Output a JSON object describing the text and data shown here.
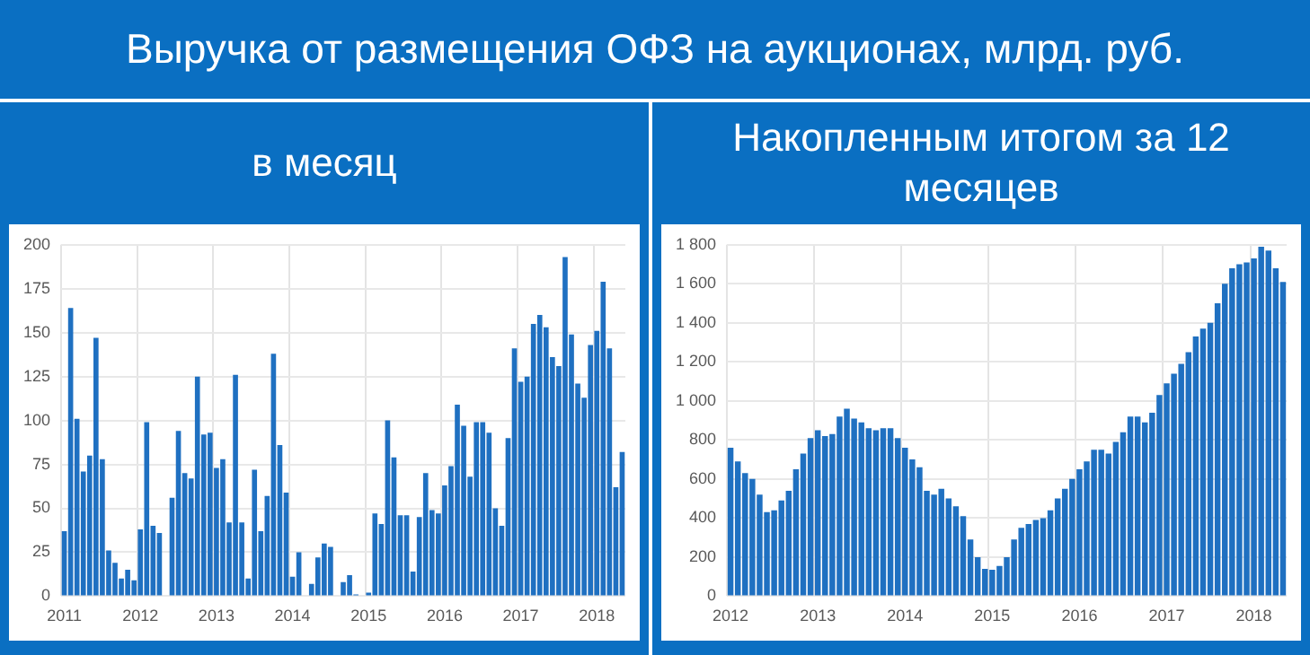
{
  "chart_data": [
    {
      "type": "bar",
      "title": "Выручка от размещения ОФЗ на аукционах, млрд. руб.",
      "subtitle": "в месяц",
      "categories": [
        "2011",
        null,
        null,
        null,
        null,
        null,
        null,
        null,
        null,
        null,
        null,
        null,
        "2012",
        null,
        null,
        null,
        null,
        null,
        null,
        null,
        null,
        null,
        null,
        null,
        "2013",
        null,
        null,
        null,
        null,
        null,
        null,
        null,
        null,
        null,
        null,
        null,
        "2014",
        null,
        null,
        null,
        null,
        null,
        null,
        null,
        null,
        null,
        null,
        null,
        "2015",
        null,
        null,
        null,
        null,
        null,
        null,
        null,
        null,
        null,
        null,
        null,
        "2016",
        null,
        null,
        null,
        null,
        null,
        null,
        null,
        null,
        null,
        null,
        null,
        "2017",
        null,
        null,
        null,
        null,
        null,
        null,
        null,
        null,
        null,
        null,
        null,
        "2018",
        null,
        null,
        null,
        null
      ],
      "values": [
        37,
        164,
        101,
        71,
        80,
        147,
        78,
        26,
        19,
        10,
        15,
        9,
        38,
        99,
        40,
        36,
        0,
        56,
        94,
        70,
        67,
        125,
        92,
        93,
        73,
        78,
        42,
        126,
        42,
        10,
        72,
        37,
        57,
        138,
        86,
        59,
        11,
        25,
        0,
        7,
        22,
        30,
        28,
        0,
        8,
        12,
        1,
        0,
        2,
        47,
        41,
        100,
        79,
        46,
        46,
        14,
        45,
        70,
        49,
        47,
        63,
        74,
        109,
        97,
        68,
        99,
        99,
        93,
        50,
        40,
        90,
        141,
        122,
        125,
        155,
        160,
        153,
        136,
        131,
        193,
        149,
        121,
        113,
        143,
        151,
        179,
        141,
        62,
        82
      ],
      "color": "#1f70c1",
      "ylim": [
        0,
        200
      ],
      "yticks": [
        0,
        25,
        50,
        75,
        100,
        125,
        150,
        175,
        200
      ],
      "grid": true
    },
    {
      "type": "bar",
      "subtitle": "Накопленным итогом за 12 месяцев",
      "categories": [
        "2012",
        null,
        null,
        null,
        null,
        null,
        null,
        null,
        null,
        null,
        null,
        null,
        "2013",
        null,
        null,
        null,
        null,
        null,
        null,
        null,
        null,
        null,
        null,
        null,
        "2014",
        null,
        null,
        null,
        null,
        null,
        null,
        null,
        null,
        null,
        null,
        null,
        "2015",
        null,
        null,
        null,
        null,
        null,
        null,
        null,
        null,
        null,
        null,
        null,
        "2016",
        null,
        null,
        null,
        null,
        null,
        null,
        null,
        null,
        null,
        null,
        null,
        "2017",
        null,
        null,
        null,
        null,
        null,
        null,
        null,
        null,
        null,
        null,
        null,
        "2018",
        null,
        null,
        null,
        null
      ],
      "values": [
        760,
        690,
        630,
        600,
        520,
        430,
        440,
        490,
        540,
        650,
        730,
        810,
        850,
        820,
        830,
        920,
        960,
        910,
        890,
        860,
        850,
        860,
        860,
        810,
        760,
        700,
        660,
        540,
        520,
        550,
        500,
        460,
        410,
        290,
        200,
        140,
        135,
        155,
        200,
        290,
        350,
        370,
        390,
        400,
        440,
        500,
        550,
        600,
        650,
        690,
        750,
        750,
        730,
        790,
        840,
        920,
        920,
        890,
        940,
        1030,
        1090,
        1140,
        1190,
        1250,
        1330,
        1370,
        1400,
        1500,
        1600,
        1680,
        1700,
        1710,
        1730,
        1790,
        1770,
        1680,
        1610
      ],
      "color": "#1f70c1",
      "ylim": [
        0,
        1800
      ],
      "yticks": [
        0,
        {
          "value": 200,
          "label": "200"
        },
        {
          "value": 400,
          "label": "400"
        },
        {
          "value": 600,
          "label": "600"
        },
        {
          "value": 800,
          "label": "800"
        },
        {
          "value": 1000,
          "label": "1 000"
        },
        {
          "value": 1200,
          "label": "1 200"
        },
        {
          "value": 1400,
          "label": "1 400"
        },
        {
          "value": 1600,
          "label": "1 600"
        },
        {
          "value": 1800,
          "label": "1 800"
        }
      ],
      "grid": true
    }
  ]
}
